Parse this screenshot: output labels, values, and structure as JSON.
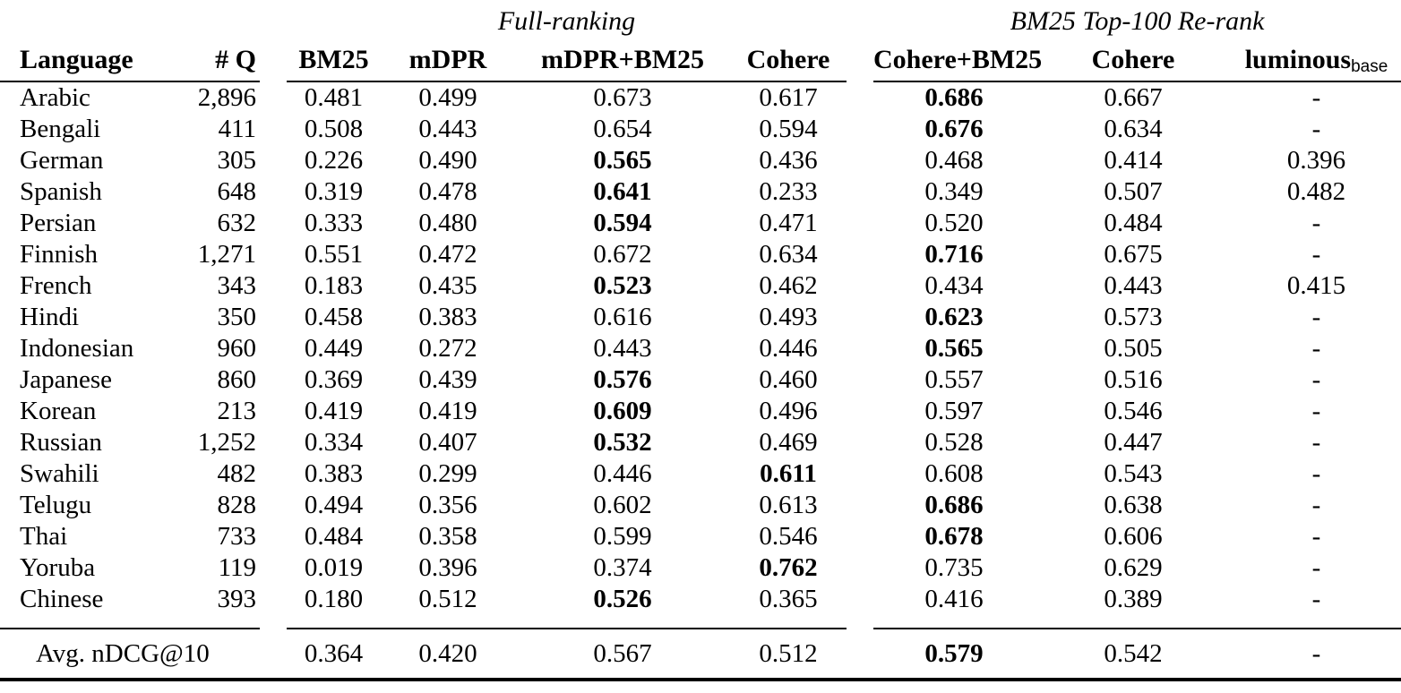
{
  "table": {
    "group_headers": [
      {
        "label": "Full-ranking"
      },
      {
        "label": "BM25 Top-100 Re-rank"
      }
    ],
    "columns": [
      {
        "label": "Language"
      },
      {
        "label": "# Q"
      },
      {
        "label": "BM25"
      },
      {
        "label": "mDPR"
      },
      {
        "label": "mDPR+BM25"
      },
      {
        "label": "Cohere"
      },
      {
        "label": "Cohere+BM25"
      },
      {
        "label": "Cohere"
      },
      {
        "label": "luminous",
        "subscript": "base"
      }
    ],
    "rows": [
      {
        "language": "Arabic",
        "num_queries": "2,896",
        "values": [
          "0.481",
          "0.499",
          "0.673",
          "0.617",
          "0.686",
          "0.667",
          "-"
        ],
        "bold_indices": [
          4
        ]
      },
      {
        "language": "Bengali",
        "num_queries": "411",
        "values": [
          "0.508",
          "0.443",
          "0.654",
          "0.594",
          "0.676",
          "0.634",
          "-"
        ],
        "bold_indices": [
          4
        ]
      },
      {
        "language": "German",
        "num_queries": "305",
        "values": [
          "0.226",
          "0.490",
          "0.565",
          "0.436",
          "0.468",
          "0.414",
          "0.396"
        ],
        "bold_indices": [
          2
        ]
      },
      {
        "language": "Spanish",
        "num_queries": "648",
        "values": [
          "0.319",
          "0.478",
          "0.641",
          "0.233",
          "0.349",
          "0.507",
          "0.482"
        ],
        "bold_indices": [
          2
        ]
      },
      {
        "language": "Persian",
        "num_queries": "632",
        "values": [
          "0.333",
          "0.480",
          "0.594",
          "0.471",
          "0.520",
          "0.484",
          "-"
        ],
        "bold_indices": [
          2
        ]
      },
      {
        "language": "Finnish",
        "num_queries": "1,271",
        "values": [
          "0.551",
          "0.472",
          "0.672",
          "0.634",
          "0.716",
          "0.675",
          "-"
        ],
        "bold_indices": [
          4
        ]
      },
      {
        "language": "French",
        "num_queries": "343",
        "values": [
          "0.183",
          "0.435",
          "0.523",
          "0.462",
          "0.434",
          "0.443",
          "0.415"
        ],
        "bold_indices": [
          2
        ]
      },
      {
        "language": "Hindi",
        "num_queries": "350",
        "values": [
          "0.458",
          "0.383",
          "0.616",
          "0.493",
          "0.623",
          "0.573",
          "-"
        ],
        "bold_indices": [
          4
        ]
      },
      {
        "language": "Indonesian",
        "num_queries": "960",
        "values": [
          "0.449",
          "0.272",
          "0.443",
          "0.446",
          "0.565",
          "0.505",
          "-"
        ],
        "bold_indices": [
          4
        ]
      },
      {
        "language": "Japanese",
        "num_queries": "860",
        "values": [
          "0.369",
          "0.439",
          "0.576",
          "0.460",
          "0.557",
          "0.516",
          "-"
        ],
        "bold_indices": [
          2
        ]
      },
      {
        "language": "Korean",
        "num_queries": "213",
        "values": [
          "0.419",
          "0.419",
          "0.609",
          "0.496",
          "0.597",
          "0.546",
          "-"
        ],
        "bold_indices": [
          2
        ]
      },
      {
        "language": "Russian",
        "num_queries": "1,252",
        "values": [
          "0.334",
          "0.407",
          "0.532",
          "0.469",
          "0.528",
          "0.447",
          "-"
        ],
        "bold_indices": [
          2
        ]
      },
      {
        "language": "Swahili",
        "num_queries": "482",
        "values": [
          "0.383",
          "0.299",
          "0.446",
          "0.611",
          "0.608",
          "0.543",
          "-"
        ],
        "bold_indices": [
          3
        ]
      },
      {
        "language": "Telugu",
        "num_queries": "828",
        "values": [
          "0.494",
          "0.356",
          "0.602",
          "0.613",
          "0.686",
          "0.638",
          "-"
        ],
        "bold_indices": [
          4
        ]
      },
      {
        "language": "Thai",
        "num_queries": "733",
        "values": [
          "0.484",
          "0.358",
          "0.599",
          "0.546",
          "0.678",
          "0.606",
          "-"
        ],
        "bold_indices": [
          4
        ]
      },
      {
        "language": "Yoruba",
        "num_queries": "119",
        "values": [
          "0.019",
          "0.396",
          "0.374",
          "0.762",
          "0.735",
          "0.629",
          "-"
        ],
        "bold_indices": [
          3
        ]
      },
      {
        "language": "Chinese",
        "num_queries": "393",
        "values": [
          "0.180",
          "0.512",
          "0.526",
          "0.365",
          "0.416",
          "0.389",
          "-"
        ],
        "bold_indices": [
          2
        ]
      }
    ],
    "footer": {
      "label": "Avg. nDCG@10",
      "values": [
        "0.364",
        "0.420",
        "0.567",
        "0.512",
        "0.579",
        "0.542",
        "-"
      ],
      "bold_indices": [
        4
      ]
    }
  }
}
